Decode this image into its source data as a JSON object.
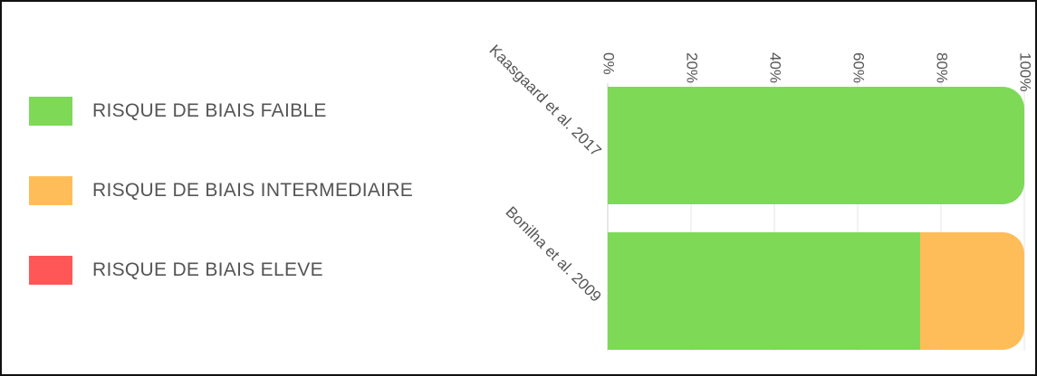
{
  "legend": {
    "items": [
      {
        "label": "RISQUE DE BIAIS FAIBLE",
        "color": "#7ED957"
      },
      {
        "label": "RISQUE DE BIAIS INTERMEDIAIRE",
        "color": "#FFBD59"
      },
      {
        "label": "RISQUE DE BIAIS ELEVE",
        "color": "#FF5757"
      }
    ]
  },
  "chart_data": {
    "type": "bar",
    "orientation": "horizontal",
    "stacked": true,
    "categories": [
      "Kaasgaard et al. 2017",
      "Bonilha et al. 2009"
    ],
    "series": [
      {
        "name": "RISQUE DE BIAIS FAIBLE",
        "color": "#7ED957",
        "values": [
          100,
          75
        ]
      },
      {
        "name": "RISQUE DE BIAIS INTERMEDIAIRE",
        "color": "#FFBD59",
        "values": [
          0,
          25
        ]
      },
      {
        "name": "RISQUE DE BIAIS ELEVE",
        "color": "#FF5757",
        "values": [
          0,
          0
        ]
      }
    ],
    "xlim": [
      0,
      100
    ],
    "x_ticks": [
      "0%",
      "20%",
      "40%",
      "60%",
      "80%",
      "100%"
    ],
    "x_tick_values": [
      0,
      20,
      40,
      60,
      80,
      100
    ],
    "grid": true,
    "legend_position": "left",
    "title": "",
    "xlabel": "",
    "ylabel": ""
  }
}
